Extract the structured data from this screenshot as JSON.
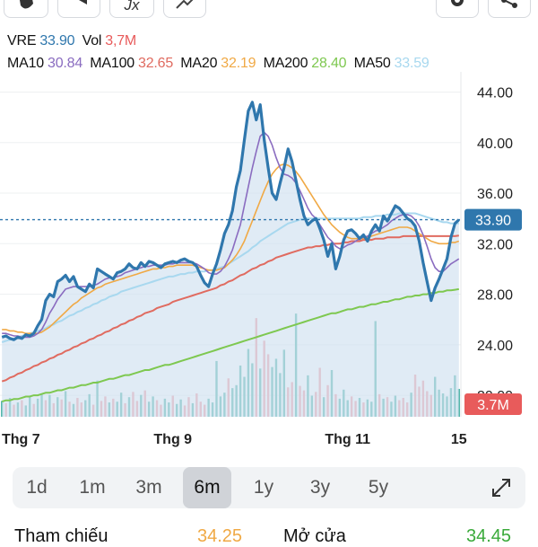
{
  "colors": {
    "price_line": "#2f77ad",
    "price_fill": "#cfe0ef",
    "ma10": "#8a6cc0",
    "ma100": "#e06b60",
    "ma20": "#f0a945",
    "ma200": "#7ec850",
    "ma50": "#a8d8ef",
    "vol_up": "#52b6a9",
    "vol_down": "#f49ba1",
    "last_price_badge": "#2f77ad",
    "volume_badge": "#e85b5b"
  },
  "toolbar": {
    "fx_label": "Jx"
  },
  "header": {
    "symbol": "VRE",
    "price": "33.90",
    "vol_label": "Vol",
    "vol_value": "3,7M",
    "indicators": [
      {
        "name": "MA10",
        "value": "30.84"
      },
      {
        "name": "MA100",
        "value": "32.65"
      },
      {
        "name": "MA20",
        "value": "32.19"
      },
      {
        "name": "MA200",
        "value": "28.40"
      },
      {
        "name": "MA50",
        "value": "33.59"
      }
    ]
  },
  "chart_data": {
    "type": "line",
    "y_ticks": [
      "44.00",
      "40.00",
      "36.00",
      "32.00",
      "28.00",
      "24.00",
      "20.00"
    ],
    "ylim": [
      18.3,
      45.6
    ],
    "x_labels": [
      {
        "label": "Thg 7",
        "index": 1
      },
      {
        "label": "Thg 9",
        "index": 43
      },
      {
        "label": "Thg 11",
        "index": 87
      },
      {
        "label": "15",
        "index": 115
      }
    ],
    "last_price_label": "33.90",
    "last_price": 33.9,
    "volume_label": "3.7M",
    "price": [
      24.6,
      24.7,
      24.5,
      24.4,
      24.6,
      24.5,
      24.8,
      24.7,
      24.9,
      25.5,
      26.0,
      27.5,
      28.0,
      27.8,
      29.0,
      29.2,
      29.5,
      29.0,
      29.4,
      28.6,
      28.4,
      28.2,
      28.8,
      28.5,
      30.0,
      29.8,
      29.6,
      29.4,
      29.2,
      29.7,
      29.8,
      30.0,
      30.4,
      30.1,
      30.0,
      30.5,
      30.2,
      30.6,
      30.5,
      30.3,
      30.1,
      30.4,
      30.5,
      30.6,
      30.5,
      30.7,
      30.8,
      30.6,
      30.5,
      30.2,
      29.5,
      28.9,
      28.6,
      29.6,
      30.4,
      31.5,
      32.8,
      33.5,
      34.6,
      36.5,
      37.8,
      40.2,
      42.5,
      43.2,
      41.8,
      43.0,
      40.2,
      38.0,
      36.0,
      35.5,
      36.8,
      38.0,
      39.5,
      38.5,
      37.0,
      35.5,
      34.2,
      33.5,
      33.8,
      34.0,
      33.2,
      32.3,
      31.0,
      32.0,
      30.0,
      31.0,
      32.3,
      33.0,
      33.1,
      32.8,
      32.4,
      32.7,
      32.2,
      33.0,
      33.5,
      33.0,
      34.2,
      33.8,
      34.4,
      35.0,
      34.8,
      34.4,
      34.0,
      33.8,
      33.4,
      32.2,
      30.5,
      29.0,
      27.5,
      28.5,
      29.2,
      30.0,
      30.8,
      32.5,
      33.6,
      33.9
    ],
    "ma10": [
      24.9,
      24.9,
      24.8,
      24.7,
      24.7,
      24.6,
      24.6,
      24.6,
      24.7,
      24.9,
      25.2,
      25.8,
      26.5,
      27.0,
      27.6,
      28.0,
      28.4,
      28.5,
      28.6,
      28.6,
      28.6,
      28.6,
      28.6,
      28.7,
      28.8,
      29.0,
      29.2,
      29.3,
      29.3,
      29.4,
      29.5,
      29.7,
      29.8,
      29.9,
      30.0,
      30.1,
      30.2,
      30.2,
      30.3,
      30.3,
      30.3,
      30.3,
      30.4,
      30.4,
      30.5,
      30.5,
      30.5,
      30.5,
      30.5,
      30.4,
      30.2,
      30.0,
      29.7,
      29.6,
      29.6,
      29.8,
      30.2,
      30.8,
      31.5,
      32.5,
      33.5,
      35.0,
      36.5,
      38.0,
      39.3,
      40.5,
      40.8,
      40.5,
      39.8,
      38.8,
      38.0,
      37.5,
      37.4,
      37.2,
      36.8,
      36.2,
      35.5,
      34.8,
      34.3,
      34.0,
      33.5,
      33.0,
      32.5,
      32.2,
      31.8,
      31.6,
      31.7,
      31.9,
      32.0,
      32.2,
      32.4,
      32.5,
      32.6,
      32.8,
      33.0,
      33.1,
      33.3,
      33.5,
      33.8,
      34.0,
      34.2,
      34.3,
      34.3,
      34.2,
      33.9,
      33.4,
      32.7,
      31.8,
      30.8,
      30.1,
      29.8,
      29.8,
      30.1,
      30.4,
      30.6,
      30.8
    ],
    "ma20": [
      25.2,
      25.2,
      25.1,
      25.1,
      25.0,
      25.0,
      24.9,
      24.9,
      24.9,
      24.9,
      25.0,
      25.2,
      25.4,
      25.7,
      26.0,
      26.3,
      26.6,
      26.9,
      27.2,
      27.4,
      27.7,
      27.9,
      28.1,
      28.3,
      28.5,
      28.6,
      28.8,
      28.9,
      29.0,
      29.1,
      29.2,
      29.3,
      29.4,
      29.5,
      29.6,
      29.7,
      29.8,
      29.9,
      30.0,
      30.0,
      30.1,
      30.1,
      30.2,
      30.2,
      30.3,
      30.3,
      30.3,
      30.3,
      30.3,
      30.2,
      30.1,
      30.0,
      29.9,
      29.9,
      29.9,
      30.0,
      30.1,
      30.4,
      30.7,
      31.1,
      31.6,
      32.2,
      33.0,
      33.8,
      34.6,
      35.4,
      36.2,
      36.9,
      37.5,
      37.9,
      38.2,
      38.3,
      38.2,
      38.0,
      37.7,
      37.3,
      36.8,
      36.3,
      35.8,
      35.3,
      34.8,
      34.3,
      33.9,
      33.5,
      33.2,
      32.9,
      32.7,
      32.5,
      32.4,
      32.4,
      32.4,
      32.4,
      32.5,
      32.6,
      32.7,
      32.8,
      32.9,
      33.0,
      33.1,
      33.2,
      33.3,
      33.3,
      33.3,
      33.2,
      33.0,
      32.8,
      32.6,
      32.4,
      32.2,
      32.1,
      32.0,
      32.0,
      32.0,
      32.1,
      32.1,
      32.2
    ],
    "ma50": [
      24.2,
      24.3,
      24.4,
      24.5,
      24.6,
      24.7,
      24.8,
      24.9,
      25.0,
      25.1,
      25.2,
      25.3,
      25.5,
      25.6,
      25.8,
      25.9,
      26.1,
      26.3,
      26.4,
      26.6,
      26.7,
      26.9,
      27.0,
      27.2,
      27.3,
      27.5,
      27.6,
      27.8,
      27.9,
      28.0,
      28.2,
      28.3,
      28.4,
      28.5,
      28.6,
      28.7,
      28.8,
      28.9,
      29.0,
      29.1,
      29.2,
      29.3,
      29.4,
      29.4,
      29.5,
      29.6,
      29.6,
      29.7,
      29.7,
      29.8,
      29.8,
      29.8,
      29.9,
      29.9,
      30.0,
      30.1,
      30.2,
      30.4,
      30.6,
      30.8,
      31.0,
      31.2,
      31.4,
      31.7,
      31.9,
      32.2,
      32.4,
      32.6,
      32.8,
      33.0,
      33.2,
      33.4,
      33.6,
      33.7,
      33.8,
      33.9,
      34.0,
      34.0,
      34.0,
      34.0,
      34.0,
      34.0,
      34.0,
      34.0,
      34.0,
      34.0,
      34.0,
      34.0,
      34.0,
      34.0,
      34.0,
      34.1,
      34.1,
      34.1,
      34.2,
      34.2,
      34.2,
      34.3,
      34.3,
      34.3,
      34.4,
      34.4,
      34.4,
      34.4,
      34.4,
      34.3,
      34.2,
      34.1,
      34.0,
      33.9,
      33.8,
      33.7,
      33.7,
      33.6,
      33.6,
      33.6
    ],
    "ma100": [
      21.1,
      21.2,
      21.4,
      21.5,
      21.7,
      21.8,
      22.0,
      22.1,
      22.3,
      22.4,
      22.6,
      22.7,
      22.9,
      23.0,
      23.2,
      23.3,
      23.5,
      23.6,
      23.8,
      23.9,
      24.1,
      24.2,
      24.4,
      24.5,
      24.7,
      24.8,
      25.0,
      25.1,
      25.3,
      25.4,
      25.6,
      25.7,
      25.9,
      26.0,
      26.2,
      26.3,
      26.5,
      26.6,
      26.7,
      26.9,
      27.0,
      27.1,
      27.2,
      27.4,
      27.5,
      27.6,
      27.7,
      27.8,
      27.9,
      28.0,
      28.1,
      28.2,
      28.3,
      28.4,
      28.5,
      28.7,
      28.8,
      29.0,
      29.1,
      29.3,
      29.5,
      29.6,
      29.8,
      30.0,
      30.1,
      30.3,
      30.4,
      30.6,
      30.7,
      30.9,
      31.0,
      31.1,
      31.2,
      31.3,
      31.4,
      31.5,
      31.6,
      31.7,
      31.7,
      31.8,
      31.8,
      31.9,
      31.9,
      32.0,
      32.0,
      32.0,
      32.1,
      32.1,
      32.2,
      32.2,
      32.2,
      32.3,
      32.3,
      32.3,
      32.4,
      32.4,
      32.4,
      32.5,
      32.5,
      32.5,
      32.5,
      32.6,
      32.6,
      32.6,
      32.6,
      32.6,
      32.6,
      32.6,
      32.6,
      32.6,
      32.6,
      32.6,
      32.6,
      32.6,
      32.6,
      32.65
    ],
    "ma200": [
      19.5,
      19.6,
      19.6,
      19.7,
      19.7,
      19.8,
      19.9,
      19.9,
      20.0,
      20.0,
      20.1,
      20.2,
      20.2,
      20.3,
      20.4,
      20.4,
      20.5,
      20.6,
      20.6,
      20.7,
      20.8,
      20.8,
      20.9,
      21.0,
      21.0,
      21.1,
      21.2,
      21.3,
      21.3,
      21.4,
      21.5,
      21.6,
      21.6,
      21.7,
      21.8,
      21.9,
      22.0,
      22.0,
      22.1,
      22.2,
      22.3,
      22.4,
      22.4,
      22.5,
      22.6,
      22.7,
      22.8,
      22.9,
      23.0,
      23.1,
      23.2,
      23.3,
      23.4,
      23.5,
      23.6,
      23.7,
      23.8,
      23.9,
      24.0,
      24.1,
      24.2,
      24.3,
      24.4,
      24.5,
      24.6,
      24.7,
      24.8,
      24.9,
      25.0,
      25.1,
      25.2,
      25.3,
      25.4,
      25.5,
      25.6,
      25.7,
      25.8,
      25.9,
      26.0,
      26.1,
      26.2,
      26.3,
      26.4,
      26.5,
      26.5,
      26.6,
      26.7,
      26.8,
      26.8,
      26.9,
      27.0,
      27.0,
      27.1,
      27.2,
      27.2,
      27.3,
      27.4,
      27.4,
      27.5,
      27.6,
      27.6,
      27.7,
      27.8,
      27.8,
      27.9,
      27.9,
      28.0,
      28.0,
      28.1,
      28.1,
      28.2,
      28.2,
      28.3,
      28.3,
      28.35,
      28.4
    ],
    "volume": [
      2.1,
      1.8,
      2.5,
      1.6,
      1.9,
      2.2,
      1.5,
      2.8,
      1.7,
      2.4,
      3.1,
      2.2,
      2.9,
      1.8,
      2.6,
      2.3,
      3.4,
      2.0,
      1.7,
      2.5,
      1.9,
      2.2,
      3.0,
      1.6,
      4.8,
      2.1,
      2.7,
      1.9,
      2.4,
      2.0,
      3.2,
      1.8,
      2.6,
      3.3,
      2.1,
      2.9,
      3.5,
      2.0,
      2.7,
      2.2,
      1.6,
      2.4,
      1.9,
      2.8,
      1.7,
      2.3,
      1.5,
      2.6,
      1.8,
      3.1,
      2.0,
      1.6,
      2.4,
      1.9,
      7.4,
      2.7,
      3.2,
      5.1,
      3.8,
      4.2,
      6.8,
      5.3,
      9.0,
      7.1,
      13.1,
      6.4,
      10.1,
      8.3,
      6.6,
      7.7,
      5.8,
      8.9,
      3.9,
      4.6,
      13.7,
      4.1,
      3.5,
      5.5,
      2.8,
      3.3,
      6.5,
      2.6,
      4.2,
      6.2,
      3.0,
      2.4,
      3.6,
      2.2,
      2.7,
      2.1,
      2.5,
      1.9,
      2.3,
      2.0,
      12.7,
      3.0,
      2.4,
      2.6,
      2.0,
      2.8,
      2.2,
      2.5,
      1.9,
      3.2,
      5.6,
      4.0,
      4.8,
      3.4,
      2.9,
      5.3,
      3.6,
      3.1,
      2.7,
      3.8,
      5.5,
      3.7
    ],
    "volume_up": [
      true,
      false,
      true,
      false,
      true,
      false,
      true,
      true,
      false,
      true,
      true,
      false,
      true,
      false,
      true,
      false,
      true,
      false,
      true,
      false,
      false,
      true,
      true,
      false,
      true,
      false,
      false,
      true,
      false,
      true,
      true,
      false,
      true,
      false,
      false,
      true,
      false,
      true,
      true,
      false,
      false,
      true,
      true,
      false,
      true,
      true,
      false,
      false,
      true,
      false,
      false,
      false,
      true,
      true,
      true,
      true,
      true,
      false,
      true,
      true,
      true,
      true,
      true,
      true,
      false,
      true,
      false,
      false,
      true,
      true,
      true,
      true,
      false,
      false,
      true,
      false,
      false,
      true,
      true,
      false,
      false,
      true,
      false,
      true,
      false,
      true,
      true,
      true,
      false,
      false,
      true,
      false,
      true,
      true,
      true,
      false,
      true,
      false,
      true,
      true,
      false,
      false,
      false,
      true,
      false,
      false,
      false,
      false,
      false,
      true,
      true,
      true,
      true,
      true,
      true,
      true
    ],
    "vol_max": 15.5
  },
  "ranges": {
    "items": [
      "1d",
      "1m",
      "3m",
      "6m",
      "1y",
      "3y",
      "5y"
    ],
    "active": "6m"
  },
  "footer": {
    "ref_label": "Tham chiếu",
    "ref_value": "34.25",
    "open_label": "Mở cửa",
    "open_value": "34.45"
  }
}
